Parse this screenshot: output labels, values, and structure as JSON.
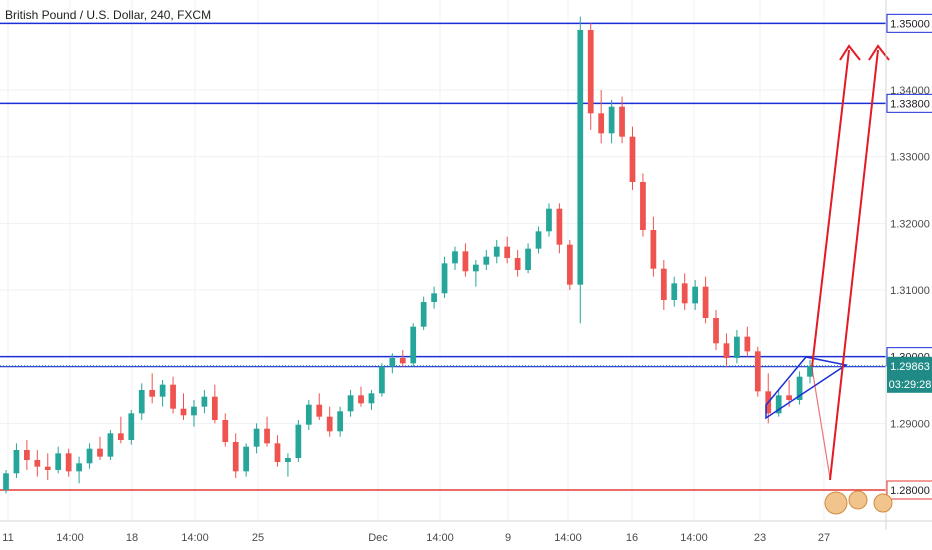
{
  "title": "British Pound / U.S. Dollar, 240, FXCM",
  "colors": {
    "up": "#26a69a",
    "down": "#ef5350",
    "level_blue": "#1a2fd6",
    "level_red": "#e53935",
    "arrow_red": "#e31b23",
    "current_price_bg": "#1f8a86",
    "grid": "#eef1f5",
    "axis_text": "#4a4a4a"
  },
  "chart_data": {
    "type": "candlestick",
    "symbol": "British Pound / U.S. Dollar",
    "timeframe": "240",
    "source": "FXCM",
    "ylim": [
      1.2755,
      1.3535
    ],
    "y_ticks": [
      "1.35000",
      "1.34000",
      "1.33000",
      "1.32000",
      "1.31000",
      "1.30000",
      "1.29000",
      "1.28000"
    ],
    "x_ticks": [
      "11",
      "14:00",
      "18",
      "14:00",
      "25",
      "Dec",
      "14:00",
      "9",
      "14:00",
      "16",
      "14:00",
      "23",
      "27"
    ],
    "levels": [
      {
        "label": "1.35000",
        "price": 1.35,
        "color": "blue"
      },
      {
        "label": "1.33800",
        "price": 1.338,
        "color": "blue"
      },
      {
        "label": "1.30000",
        "price": 1.3,
        "color": "blue"
      },
      {
        "label": "1.28000",
        "price": 1.28,
        "color": "red"
      }
    ],
    "current_price": {
      "value": "1.29863",
      "countdown": "03:29:28"
    },
    "candles": [
      [
        1.28,
        1.283,
        1.2795,
        1.2825
      ],
      [
        1.2825,
        1.287,
        1.2818,
        1.286
      ],
      [
        1.286,
        1.2875,
        1.283,
        1.2845
      ],
      [
        1.2845,
        1.286,
        1.282,
        1.2835
      ],
      [
        1.2835,
        1.2855,
        1.2815,
        1.283
      ],
      [
        1.283,
        1.2865,
        1.2825,
        1.2855
      ],
      [
        1.2855,
        1.2862,
        1.282,
        1.2828
      ],
      [
        1.2828,
        1.285,
        1.281,
        1.284
      ],
      [
        1.284,
        1.287,
        1.2832,
        1.2862
      ],
      [
        1.2862,
        1.288,
        1.2845,
        1.285
      ],
      [
        1.285,
        1.289,
        1.2845,
        1.2885
      ],
      [
        1.2885,
        1.291,
        1.287,
        1.2875
      ],
      [
        1.2875,
        1.292,
        1.2868,
        1.2915
      ],
      [
        1.2915,
        1.296,
        1.2905,
        1.295
      ],
      [
        1.295,
        1.2975,
        1.293,
        1.294
      ],
      [
        1.294,
        1.2965,
        1.2925,
        1.2958
      ],
      [
        1.2958,
        1.297,
        1.2915,
        1.2922
      ],
      [
        1.2922,
        1.2945,
        1.2905,
        1.2912
      ],
      [
        1.2912,
        1.2935,
        1.2895,
        1.2925
      ],
      [
        1.2925,
        1.295,
        1.2915,
        1.294
      ],
      [
        1.294,
        1.2958,
        1.29,
        1.2905
      ],
      [
        1.2905,
        1.2915,
        1.2865,
        1.2872
      ],
      [
        1.2872,
        1.2885,
        1.2818,
        1.2828
      ],
      [
        1.2828,
        1.287,
        1.282,
        1.2865
      ],
      [
        1.2865,
        1.29,
        1.2855,
        1.2892
      ],
      [
        1.2892,
        1.291,
        1.2865,
        1.287
      ],
      [
        1.287,
        1.2882,
        1.2835,
        1.2842
      ],
      [
        1.2842,
        1.2855,
        1.282,
        1.2848
      ],
      [
        1.2848,
        1.2905,
        1.2842,
        1.2898
      ],
      [
        1.2898,
        1.2935,
        1.289,
        1.2928
      ],
      [
        1.2928,
        1.2945,
        1.2905,
        1.291
      ],
      [
        1.291,
        1.2925,
        1.288,
        1.2888
      ],
      [
        1.2888,
        1.2925,
        1.288,
        1.2918
      ],
      [
        1.2918,
        1.295,
        1.291,
        1.2942
      ],
      [
        1.2942,
        1.2955,
        1.2925,
        1.293
      ],
      [
        1.293,
        1.295,
        1.292,
        1.2945
      ],
      [
        1.2945,
        1.299,
        1.294,
        1.2985
      ],
      [
        1.2985,
        1.3005,
        1.2975,
        1.2998
      ],
      [
        1.2998,
        1.301,
        1.2985,
        1.299
      ],
      [
        1.299,
        1.305,
        1.2985,
        1.3045
      ],
      [
        1.3045,
        1.309,
        1.304,
        1.3082
      ],
      [
        1.3082,
        1.3105,
        1.3072,
        1.3095
      ],
      [
        1.3095,
        1.315,
        1.3088,
        1.314
      ],
      [
        1.314,
        1.3165,
        1.313,
        1.3158
      ],
      [
        1.3158,
        1.317,
        1.312,
        1.3128
      ],
      [
        1.3128,
        1.3145,
        1.3105,
        1.3138
      ],
      [
        1.3138,
        1.316,
        1.313,
        1.315
      ],
      [
        1.315,
        1.3175,
        1.314,
        1.3165
      ],
      [
        1.3165,
        1.318,
        1.314,
        1.3148
      ],
      [
        1.3148,
        1.316,
        1.312,
        1.313
      ],
      [
        1.313,
        1.317,
        1.3125,
        1.3162
      ],
      [
        1.3162,
        1.3195,
        1.3155,
        1.3188
      ],
      [
        1.3188,
        1.323,
        1.318,
        1.3222
      ],
      [
        1.3222,
        1.323,
        1.3155,
        1.3168
      ],
      [
        1.3168,
        1.3175,
        1.31,
        1.3108
      ],
      [
        1.3108,
        1.351,
        1.305,
        1.349
      ],
      [
        1.349,
        1.35,
        1.334,
        1.3365
      ],
      [
        1.3365,
        1.34,
        1.332,
        1.3335
      ],
      [
        1.3335,
        1.3385,
        1.332,
        1.3375
      ],
      [
        1.3375,
        1.339,
        1.332,
        1.333
      ],
      [
        1.333,
        1.3345,
        1.325,
        1.3262
      ],
      [
        1.3262,
        1.3275,
        1.318,
        1.319
      ],
      [
        1.319,
        1.321,
        1.312,
        1.3132
      ],
      [
        1.3132,
        1.3145,
        1.307,
        1.3085
      ],
      [
        1.3085,
        1.312,
        1.3075,
        1.311
      ],
      [
        1.311,
        1.3125,
        1.307,
        1.308
      ],
      [
        1.308,
        1.3115,
        1.307,
        1.3105
      ],
      [
        1.3105,
        1.312,
        1.305,
        1.3058
      ],
      [
        1.3058,
        1.307,
        1.301,
        1.302
      ],
      [
        1.302,
        1.3035,
        1.2985,
        1.2998
      ],
      [
        1.2998,
        1.304,
        1.299,
        1.303
      ],
      [
        1.303,
        1.3045,
        1.3,
        1.3008
      ],
      [
        1.3008,
        1.3015,
        1.294,
        1.2948
      ],
      [
        1.2948,
        1.2975,
        1.29,
        1.2915
      ],
      [
        1.2915,
        1.295,
        1.291,
        1.2942
      ],
      [
        1.2942,
        1.2965,
        1.2925,
        1.2935
      ],
      [
        1.2935,
        1.2978,
        1.2928,
        1.297
      ],
      [
        1.297,
        1.2995,
        1.296,
        1.2986
      ]
    ]
  }
}
